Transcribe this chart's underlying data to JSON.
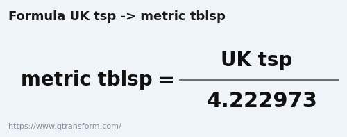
{
  "background_color": "#eef4f7",
  "title": "Formula UK tsp -> metric tblsp",
  "title_fontsize": 13,
  "title_color": "#1a1a1a",
  "title_fontweight": "bold",
  "numerator": "UK tsp",
  "denominator": "metric tblsp",
  "equals_value": "4.222973",
  "numerator_fontsize": 20,
  "denominator_fontsize": 20,
  "value_fontsize": 22,
  "line_color": "#555555",
  "text_color": "#111111",
  "url_text": "https://www.qtransform.com/",
  "url_fontsize": 8,
  "url_color": "#888899"
}
